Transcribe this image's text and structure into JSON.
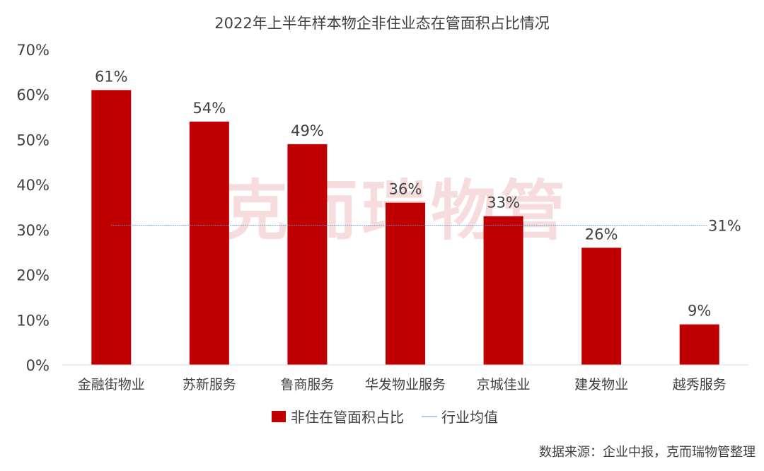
{
  "chart_data": {
    "type": "bar",
    "title": "2022年上半年样本物企非住业态在管面积占比情况",
    "categories": [
      "金融街物业",
      "苏新服务",
      "鲁商服务",
      "华发物业服务",
      "京城佳业",
      "建发物业",
      "越秀服务"
    ],
    "series": [
      {
        "name": "非住在管面积占比",
        "values": [
          61,
          54,
          49,
          36,
          33,
          26,
          9
        ],
        "color": "#C00000"
      }
    ],
    "data_labels": [
      "61%",
      "54%",
      "49%",
      "36%",
      "33%",
      "26%",
      "9%"
    ],
    "reference_line": {
      "name": "行业均值",
      "value": 31,
      "label": "31%",
      "color": "#5B9BD5",
      "style": "dotted"
    },
    "ylim": [
      0,
      70
    ],
    "y_ticks": [
      "0%",
      "10%",
      "20%",
      "30%",
      "40%",
      "50%",
      "60%",
      "70%"
    ],
    "grid": false,
    "legend_position": "bottom"
  },
  "watermark": "克而瑞物管",
  "source_note": "数据来源：企业中报，克而瑞物管整理"
}
